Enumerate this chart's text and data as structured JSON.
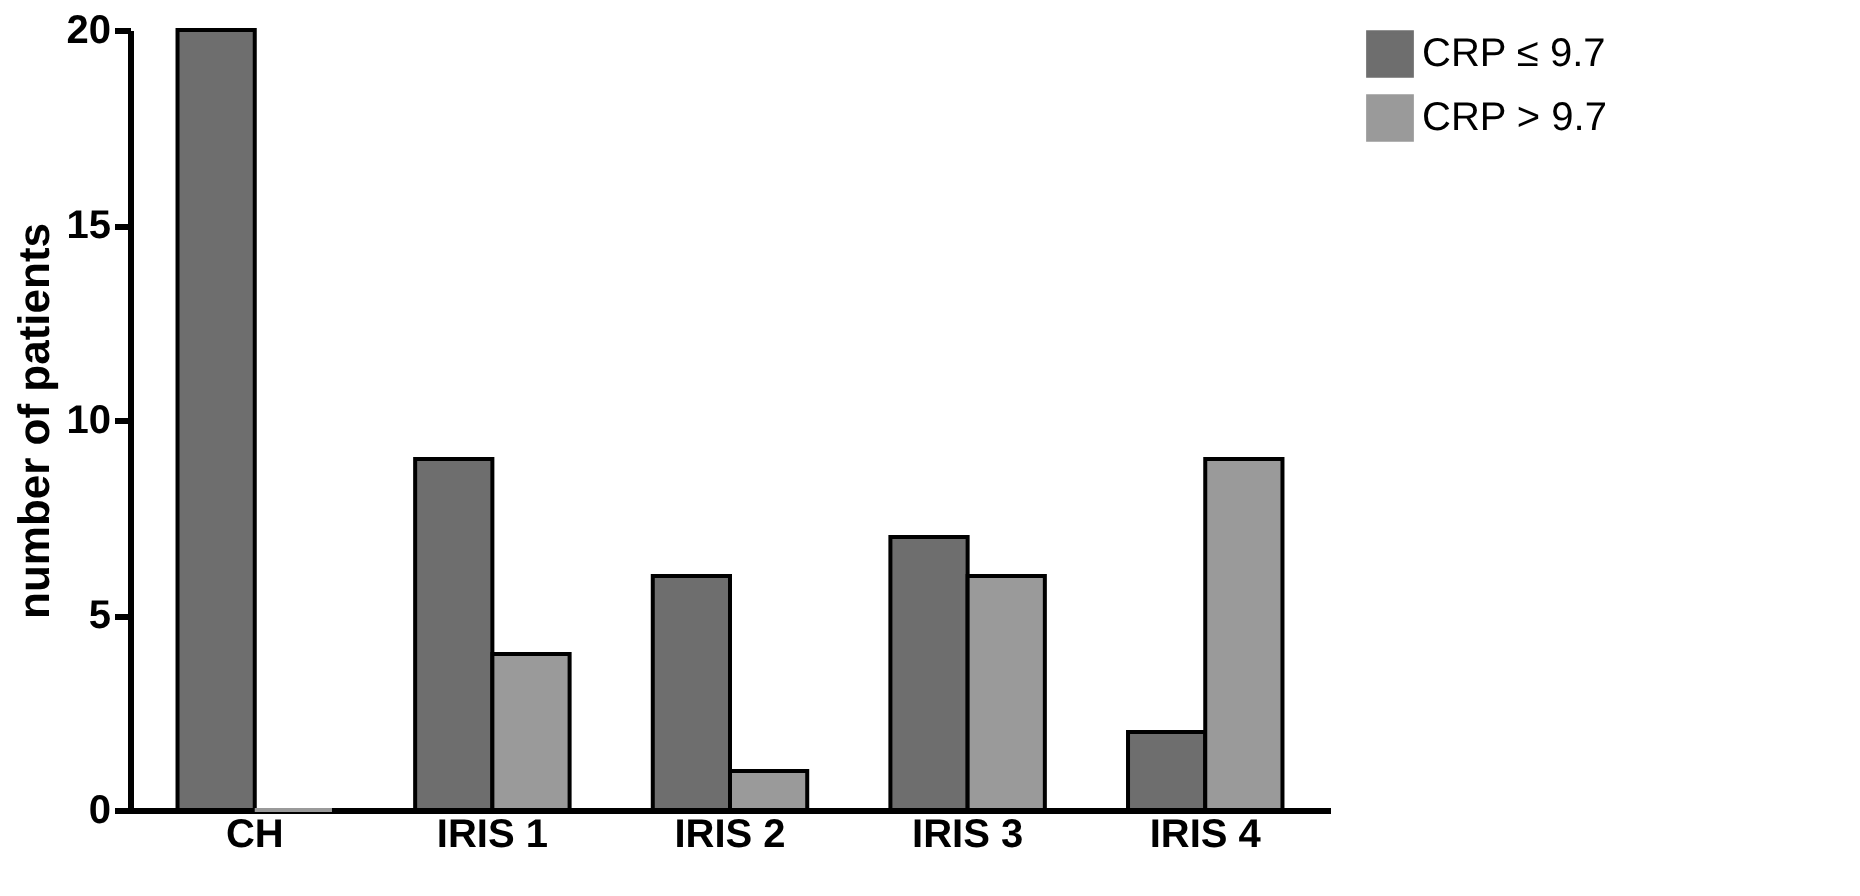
{
  "chart_data": {
    "type": "bar",
    "ylabel": "number of patients",
    "categories": [
      "CH",
      "IRIS 1",
      "IRIS 2",
      "IRIS 3",
      "IRIS 4"
    ],
    "series": [
      {
        "name": "CRP ≤ 9.7",
        "color": "#6e6e6e",
        "values": [
          20,
          9,
          6,
          7,
          2
        ]
      },
      {
        "name": "CRP > 9.7",
        "color": "#9a9a9a",
        "values": [
          0,
          4,
          1,
          6,
          9
        ]
      }
    ],
    "ylim": [
      0,
      20
    ],
    "yticks": [
      0,
      5,
      10,
      15,
      20
    ],
    "grid": false,
    "legend": "top right"
  }
}
